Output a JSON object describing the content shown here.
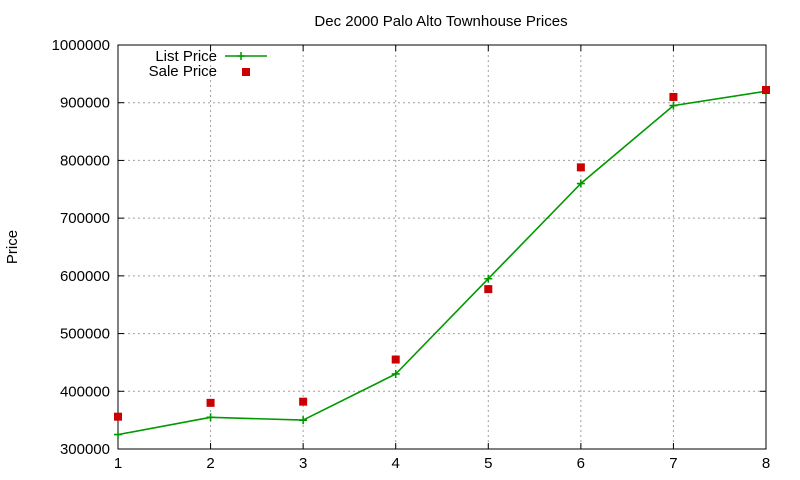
{
  "chart_data": {
    "type": "line",
    "title": "Dec 2000 Palo Alto Townhouse Prices",
    "xlabel": "",
    "ylabel": "Price",
    "x": [
      1,
      2,
      3,
      4,
      5,
      6,
      7,
      8
    ],
    "xlim": [
      1,
      8
    ],
    "ylim": [
      300000,
      1000000
    ],
    "xticks": [
      "1",
      "2",
      "3",
      "4",
      "5",
      "6",
      "7",
      "8"
    ],
    "yticks": [
      "300000",
      "400000",
      "500000",
      "600000",
      "700000",
      "800000",
      "900000",
      "1000000"
    ],
    "grid": true,
    "legend_position": "top-left",
    "series": [
      {
        "name": "List Price",
        "style": "line+cross",
        "color": "#009900",
        "values": [
          325000,
          355000,
          350000,
          430000,
          595000,
          760000,
          895000,
          920000
        ]
      },
      {
        "name": "Sale Price",
        "style": "square-markers",
        "color": "#cc0000",
        "values": [
          356000,
          380000,
          382000,
          455000,
          577000,
          788000,
          910000,
          922000
        ]
      }
    ]
  }
}
